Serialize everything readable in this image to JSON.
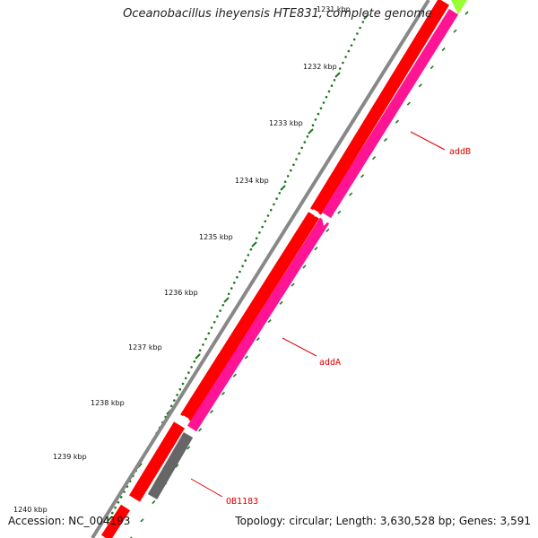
{
  "title": "Oceanobacillus iheyensis HTE831, complete genome",
  "footer": {
    "accession": "Accession: NC_004193",
    "stats": "Topology: circular; Length: 3,630,528 bp; Genes: 3,591"
  },
  "ruler": {
    "labels": [
      "1231 kbp",
      "1232 kbp",
      "1233 kbp",
      "1234 kbp",
      "1235 kbp",
      "1236 kbp",
      "1237 kbp",
      "1238 kbp",
      "1239 kbp",
      "1240 kbp"
    ]
  },
  "genes": [
    {
      "name": "addB",
      "color": "#ff1493"
    },
    {
      "name": "addA",
      "color": "#ff1493"
    },
    {
      "name": "OB1183",
      "color": "#666666"
    }
  ],
  "colors": {
    "backbone": "#888888",
    "cds_forward": "#ff0000",
    "cds_reverse": "#ff1493",
    "hypothetical": "#666666",
    "neighbor": "#99ff33",
    "tick": "#1a7a1a",
    "label": "#e00000"
  }
}
